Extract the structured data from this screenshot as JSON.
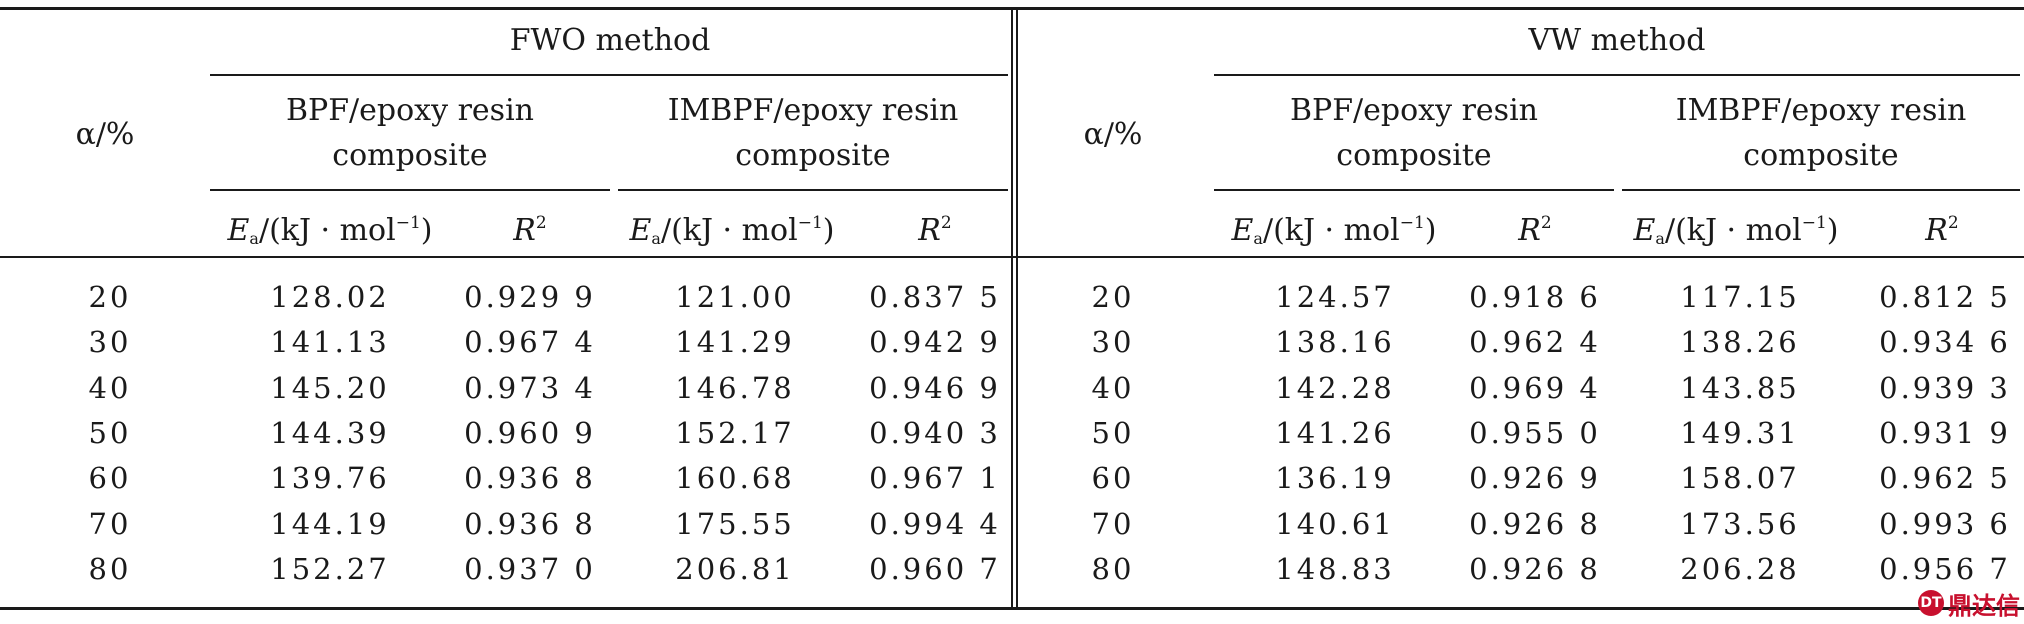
{
  "table": {
    "fwo": {
      "method": "FWO method",
      "alpha_label": "α/%",
      "group1": {
        "line1": "BPF/epoxy resin",
        "line2": "composite"
      },
      "group2": {
        "line1": "IMBPF/epoxy resin",
        "line2": "composite"
      },
      "ea_prefix": "E",
      "ea_sub": "a",
      "ea_suffix": "/(kJ · mol",
      "ea_sup": "−1",
      "ea_close": ")",
      "r2_base": "R",
      "r2_sup": "2"
    },
    "vw": {
      "method": "VW method",
      "alpha_label": "α/%",
      "group1": {
        "line1": "BPF/epoxy resin",
        "line2": "composite"
      },
      "group2": {
        "line1": "IMBPF/epoxy resin",
        "line2": "composite"
      },
      "ea_prefix": "E",
      "ea_sub": "a",
      "ea_suffix": "/(kJ · mol",
      "ea_sup": "−1",
      "ea_close": ")",
      "r2_base": "R",
      "r2_sup": "2"
    },
    "rows": [
      [
        "20",
        "128.02",
        "0.929 9",
        "121.00",
        "0.837 5",
        "20",
        "124.57",
        "0.918 6",
        "117.15",
        "0.812 5"
      ],
      [
        "30",
        "141.13",
        "0.967 4",
        "141.29",
        "0.942 9",
        "30",
        "138.16",
        "0.962 4",
        "138.26",
        "0.934 6"
      ],
      [
        "40",
        "145.20",
        "0.973 4",
        "146.78",
        "0.946 9",
        "40",
        "142.28",
        "0.969 4",
        "143.85",
        "0.939 3"
      ],
      [
        "50",
        "144.39",
        "0.960 9",
        "152.17",
        "0.940 3",
        "50",
        "141.26",
        "0.955 0",
        "149.31",
        "0.931 9"
      ],
      [
        "60",
        "139.76",
        "0.936 8",
        "160.68",
        "0.967 1",
        "60",
        "136.19",
        "0.926 9",
        "158.07",
        "0.962 5"
      ],
      [
        "70",
        "144.19",
        "0.936 8",
        "175.55",
        "0.994 4",
        "70",
        "140.61",
        "0.926 8",
        "173.56",
        "0.993 6"
      ],
      [
        "80",
        "152.27",
        "0.937 0",
        "206.81",
        "0.960 7",
        "80",
        "148.83",
        "0.926 8",
        "206.28",
        "0.956 7"
      ]
    ]
  },
  "watermark": {
    "logo_text": "DT",
    "text": "鼎达信"
  }
}
